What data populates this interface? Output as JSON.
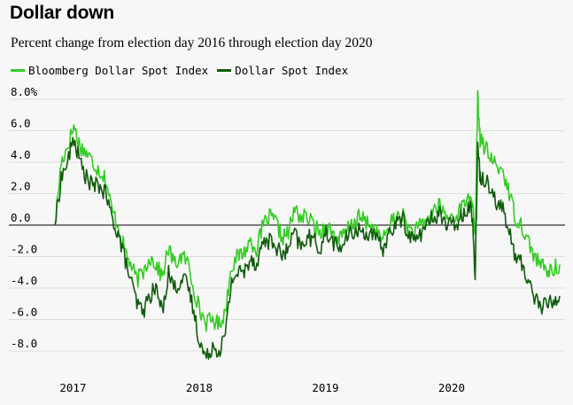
{
  "chart_data": {
    "type": "line",
    "title": "Dollar down",
    "subtitle": "Percent change from election day 2016 through election day 2020",
    "xlabel": "",
    "ylabel": "",
    "ylim": [
      -9.5,
      8.5
    ],
    "y_ticks": [
      8,
      6,
      4,
      2,
      0,
      -2,
      -4,
      -6,
      -8
    ],
    "y_tick_labels": [
      "8.0%",
      "6.0",
      "4.0",
      "2.0",
      "0.0",
      "-2.0",
      "-4.0",
      "-6.0",
      "-8.0"
    ],
    "x_range": [
      2016.85,
      2020.85
    ],
    "x_tick_labels": [
      {
        "label": "2017",
        "x": 2017.0
      },
      {
        "label": "2018",
        "x": 2018.0
      },
      {
        "label": "2019",
        "x": 2019.0
      },
      {
        "label": "2020",
        "x": 2020.0
      }
    ],
    "x": [
      2016.85,
      2016.9,
      2016.95,
      2017.0,
      2017.05,
      2017.1,
      2017.15,
      2017.2,
      2017.25,
      2017.3,
      2017.35,
      2017.4,
      2017.45,
      2017.5,
      2017.55,
      2017.6,
      2017.65,
      2017.7,
      2017.75,
      2017.8,
      2017.85,
      2017.9,
      2017.95,
      2018.0,
      2018.05,
      2018.1,
      2018.15,
      2018.2,
      2018.25,
      2018.3,
      2018.35,
      2018.4,
      2018.45,
      2018.5,
      2018.55,
      2018.6,
      2018.65,
      2018.7,
      2018.75,
      2018.8,
      2018.85,
      2018.9,
      2018.95,
      2019.0,
      2019.05,
      2019.1,
      2019.15,
      2019.2,
      2019.25,
      2019.3,
      2019.35,
      2019.4,
      2019.45,
      2019.5,
      2019.55,
      2019.6,
      2019.65,
      2019.7,
      2019.75,
      2019.8,
      2019.85,
      2019.9,
      2019.95,
      2020.0,
      2020.05,
      2020.1,
      2020.15,
      2020.18,
      2020.2,
      2020.22,
      2020.25,
      2020.3,
      2020.35,
      2020.4,
      2020.45,
      2020.5,
      2020.55,
      2020.6,
      2020.65,
      2020.7,
      2020.75,
      2020.8,
      2020.85
    ],
    "series": [
      {
        "name": "Bloomberg Dollar Spot Index",
        "color": "#33cc22",
        "values": [
          0.0,
          4.0,
          5.0,
          6.3,
          5.0,
          4.6,
          4.0,
          3.5,
          3.0,
          1.0,
          0.0,
          -1.5,
          -2.5,
          -3.5,
          -3.0,
          -2.0,
          -2.5,
          -3.3,
          -1.5,
          -2.5,
          -2.0,
          -2.3,
          -4.0,
          -5.5,
          -6.2,
          -6.0,
          -6.3,
          -5.5,
          -2.5,
          -2.0,
          -1.7,
          -1.0,
          -1.5,
          0.0,
          0.5,
          0.2,
          -0.8,
          -0.5,
          1.0,
          0.5,
          0.5,
          0.0,
          -0.5,
          0.0,
          -0.5,
          -1.0,
          -0.5,
          0.0,
          0.5,
          0.3,
          0.0,
          -0.5,
          -1.0,
          0.0,
          0.5,
          0.7,
          -0.2,
          -0.5,
          0.0,
          0.3,
          1.0,
          1.2,
          0.5,
          0.5,
          0.8,
          1.5,
          2.0,
          -1.0,
          8.1,
          5.5,
          5.0,
          4.3,
          3.7,
          3.5,
          2.0,
          0.5,
          0.0,
          -1.0,
          -2.0,
          -2.5,
          -3.0,
          -2.8,
          -2.5
        ]
      },
      {
        "name": "Dollar Spot Index",
        "color": "#0e5c0b",
        "values": [
          0.0,
          3.0,
          4.0,
          5.5,
          4.0,
          3.0,
          2.5,
          2.5,
          2.0,
          0.5,
          -0.5,
          -2.0,
          -3.5,
          -5.0,
          -5.5,
          -4.5,
          -4.0,
          -5.5,
          -3.0,
          -4.0,
          -3.5,
          -3.7,
          -5.5,
          -7.5,
          -8.5,
          -7.6,
          -8.0,
          -7.0,
          -3.5,
          -3.0,
          -3.0,
          -2.0,
          -2.5,
          -1.0,
          -1.0,
          -1.3,
          -2.0,
          -1.5,
          -0.5,
          -1.5,
          -0.7,
          -1.0,
          -1.5,
          -0.5,
          -1.0,
          -1.5,
          -1.0,
          -0.5,
          -0.3,
          -0.5,
          -0.5,
          -1.0,
          -1.5,
          -0.5,
          0.0,
          0.5,
          -0.5,
          -1.0,
          -0.5,
          0.0,
          0.5,
          0.8,
          0.0,
          0.0,
          0.3,
          1.0,
          1.3,
          -3.0,
          5.0,
          3.0,
          3.0,
          2.5,
          1.5,
          1.0,
          -0.5,
          -2.0,
          -2.5,
          -3.5,
          -4.5,
          -5.2,
          -5.0,
          -4.8,
          -4.5
        ]
      }
    ]
  }
}
